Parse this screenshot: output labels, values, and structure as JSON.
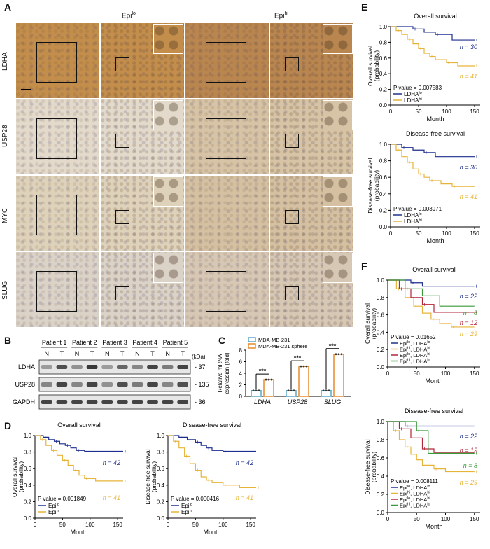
{
  "panels": {
    "A": "A",
    "B": "B",
    "C": "C",
    "D": "D",
    "E": "E",
    "F": "F"
  },
  "panelA": {
    "col_epilo": "Epi",
    "col_epilo_sup": "lo",
    "col_epihi": "Epi",
    "col_epihi_sup": "hi",
    "rows": [
      "LDHA",
      "USP28",
      "MYC",
      "SLUG"
    ],
    "row_colors": {
      "LDHA": {
        "lo": "#c38e4c",
        "hi": "#b98650"
      },
      "USP28": {
        "lo": "#e3dacb",
        "hi": "#d7c3a5"
      },
      "MYC": {
        "lo": "#dfd2ba",
        "hi": "#d5c1a2"
      },
      "SLUG": {
        "lo": "#dcd3c8",
        "hi": "#d7c8b5"
      }
    }
  },
  "panelB": {
    "patients": [
      "Patient 1",
      "Patient 2",
      "Patient 3",
      "Patient 4",
      "Patient 5"
    ],
    "lanes": [
      "N",
      "T",
      "N",
      "T",
      "N",
      "T",
      "N",
      "T",
      "N",
      "T"
    ],
    "kda_label": "(kDa)",
    "blots": [
      {
        "name": "LDHA",
        "kda": "37"
      },
      {
        "name": "USP28",
        "kda": "135"
      },
      {
        "name": "GAPDH",
        "kda": "36"
      }
    ]
  },
  "panelC": {
    "legend": [
      "MDA-MB-231",
      "MDA-MB-231 sphere"
    ],
    "legend_colors": [
      "#5aa9c7",
      "#e88a2c"
    ],
    "ylabel_line1": "Relative mRNA",
    "ylabel_line2": "expression (fold)",
    "sig": "***"
  },
  "panelD": {
    "left_title": "Overall survival",
    "right_title": "Disease-free survival",
    "ylabel_left": "Overall survival",
    "ylabel_right": "Disease-free survival",
    "ylabel_sub": "(probability)",
    "xlabel": "Month",
    "n_top": "n = 42",
    "n_bottom": "n = 41",
    "p_left": "P value = 0.001849",
    "p_right": "P value = 0.000416",
    "legend": [
      {
        "base": "Epi",
        "sup": "lo"
      },
      {
        "base": "Epi",
        "sup": "hi"
      }
    ]
  },
  "panelE": {
    "top_title": "Overall survival",
    "bottom_title": "Disease-free survival",
    "ylabel_top": "Overall survival",
    "ylabel_bottom": "Disease-free survival",
    "ylabel_sub": "(probability)",
    "xlabel": "Month",
    "n_top": "n = 30",
    "n_bottom": "n = 41",
    "p_top": "P value = 0.007583",
    "p_bottom": "P value = 0.003971",
    "legend": [
      {
        "base": "LDHA",
        "sup": "lo"
      },
      {
        "base": "LDHA",
        "sup": "hi"
      }
    ]
  },
  "panelF": {
    "top_title": "Overall survival",
    "bottom_title": "Disease-free survival",
    "ylabel_top": "Overall survival",
    "ylabel_bottom": "Disease-free survival",
    "ylabel_sub": "(probability)",
    "xlabel": "Month",
    "p_top": "P value = 0.01652",
    "p_bottom": "P value = 0.008111",
    "n_labels_top": [
      "n = 22",
      "n = 8",
      "n = 12",
      "n = 29"
    ],
    "n_labels_bottom": [
      "n = 22",
      "n = 12",
      "n = 8",
      "n = 29"
    ],
    "legend": [
      {
        "a": "Epi",
        "as": "lo",
        "b": "LDHA",
        "bs": "lo"
      },
      {
        "a": "Epi",
        "as": "hi",
        "b": "LDHA",
        "bs": "hi"
      },
      {
        "a": "Epi",
        "as": "lo",
        "b": "LDHA",
        "bs": "hi"
      },
      {
        "a": "Epi",
        "as": "hi",
        "b": "LDHA",
        "bs": "lo"
      }
    ]
  },
  "colors": {
    "blue": "#1f2f8f",
    "gold": "#e7b43a",
    "red": "#b3263a",
    "green": "#3a9a3a"
  },
  "chart_data": [
    {
      "type": "bar",
      "title": "",
      "categories": [
        "LDHA",
        "USP28",
        "SLUG"
      ],
      "series": [
        {
          "name": "MDA-MB-231",
          "values": [
            1,
            1,
            1
          ]
        },
        {
          "name": "MDA-MB-231 sphere",
          "values": [
            2.9,
            5.2,
            7.3
          ]
        }
      ],
      "ylabel": "Relative mRNA expression (fold)",
      "ylim": [
        0,
        8
      ],
      "yticks": [
        "0",
        "2",
        "4",
        "6",
        "8"
      ]
    },
    {
      "type": "line",
      "title": "Overall survival",
      "xlabel": "Month",
      "ylabel": "Overall survival (probability)",
      "xlim": [
        0,
        150
      ],
      "ylim": [
        0,
        1.0
      ],
      "xticks": [
        "0",
        "50",
        "100",
        "150"
      ],
      "yticks": [
        "0.0",
        "0.2",
        "0.4",
        "0.6",
        "0.8",
        "1.0"
      ],
      "series": [
        {
          "name": "Epi lo",
          "color": "blue",
          "x": [
            0,
            15,
            25,
            35,
            45,
            55,
            65,
            75,
            90,
            160
          ],
          "y": [
            1.0,
            0.98,
            0.95,
            0.93,
            0.9,
            0.88,
            0.85,
            0.82,
            0.81,
            0.81
          ]
        },
        {
          "name": "Epi hi",
          "color": "gold",
          "x": [
            0,
            10,
            20,
            30,
            40,
            50,
            60,
            70,
            80,
            90,
            110,
            160
          ],
          "y": [
            1.0,
            0.95,
            0.88,
            0.82,
            0.76,
            0.7,
            0.64,
            0.58,
            0.52,
            0.48,
            0.45,
            0.45
          ]
        }
      ]
    },
    {
      "type": "line",
      "title": "Disease-free survival",
      "xlabel": "Month",
      "ylabel": "Disease-free survival (probability)",
      "xlim": [
        0,
        150
      ],
      "ylim": [
        0,
        1.0
      ],
      "xticks": [
        "0",
        "50",
        "100",
        "150"
      ],
      "yticks": [
        "0.0",
        "0.2",
        "0.4",
        "0.6",
        "0.8",
        "1.0"
      ],
      "series": [
        {
          "name": "Epi lo",
          "color": "blue",
          "x": [
            0,
            20,
            35,
            50,
            60,
            70,
            80,
            100,
            160
          ],
          "y": [
            1.0,
            0.98,
            0.95,
            0.92,
            0.88,
            0.85,
            0.82,
            0.81,
            0.81
          ]
        },
        {
          "name": "Epi hi",
          "color": "gold",
          "x": [
            0,
            10,
            20,
            30,
            40,
            50,
            60,
            70,
            80,
            100,
            130,
            160
          ],
          "y": [
            1.0,
            0.93,
            0.85,
            0.75,
            0.66,
            0.58,
            0.5,
            0.46,
            0.43,
            0.4,
            0.37,
            0.37
          ]
        }
      ]
    },
    {
      "type": "line",
      "title": "Overall survival",
      "xlabel": "Month",
      "ylabel": "Overall survival (probability)",
      "xlim": [
        0,
        150
      ],
      "ylim": [
        0,
        1.0
      ],
      "xticks": [
        "0",
        "50",
        "100",
        "150"
      ],
      "yticks": [
        "0.0",
        "0.2",
        "0.4",
        "0.6",
        "0.8",
        "1.0"
      ],
      "series": [
        {
          "name": "LDHA lo",
          "color": "blue",
          "x": [
            0,
            40,
            60,
            80,
            110,
            150
          ],
          "y": [
            1.0,
            0.97,
            0.93,
            0.9,
            0.83,
            0.83
          ]
        },
        {
          "name": "LDHA hi",
          "color": "gold",
          "x": [
            0,
            10,
            20,
            30,
            40,
            50,
            60,
            70,
            80,
            100,
            120,
            150
          ],
          "y": [
            1.0,
            0.95,
            0.9,
            0.84,
            0.78,
            0.72,
            0.66,
            0.62,
            0.58,
            0.54,
            0.5,
            0.5
          ]
        }
      ]
    },
    {
      "type": "line",
      "title": "Disease-free survival",
      "xlabel": "Month",
      "ylabel": "Disease-free survival (probability)",
      "xlim": [
        0,
        150
      ],
      "ylim": [
        0,
        1.0
      ],
      "xticks": [
        "0",
        "50",
        "100",
        "150"
      ],
      "yticks": [
        "0.0",
        "0.2",
        "0.4",
        "0.6",
        "0.8",
        "1.0"
      ],
      "series": [
        {
          "name": "LDHA lo",
          "color": "blue",
          "x": [
            0,
            20,
            40,
            60,
            80,
            150
          ],
          "y": [
            1.0,
            0.96,
            0.93,
            0.9,
            0.85,
            0.85
          ]
        },
        {
          "name": "LDHA hi",
          "color": "gold",
          "x": [
            0,
            10,
            20,
            30,
            40,
            50,
            60,
            70,
            90,
            110,
            150
          ],
          "y": [
            1.0,
            0.93,
            0.85,
            0.78,
            0.7,
            0.64,
            0.6,
            0.56,
            0.52,
            0.49,
            0.49
          ]
        }
      ]
    },
    {
      "type": "line",
      "title": "Overall survival",
      "xlabel": "Month",
      "ylabel": "Overall survival (probability)",
      "xlim": [
        0,
        150
      ],
      "ylim": [
        0,
        1.0
      ],
      "xticks": [
        "0",
        "50",
        "100",
        "150"
      ],
      "yticks": [
        "0.0",
        "0.2",
        "0.4",
        "0.6",
        "0.8",
        "1.0"
      ],
      "series": [
        {
          "name": "Epi lo, LDHA lo",
          "color": "blue",
          "x": [
            0,
            40,
            60,
            150
          ],
          "y": [
            1.0,
            0.97,
            0.93,
            0.93
          ]
        },
        {
          "name": "Epi hi, LDHA hi",
          "color": "gold",
          "x": [
            0,
            15,
            30,
            45,
            60,
            75,
            90,
            110,
            150
          ],
          "y": [
            1.0,
            0.9,
            0.8,
            0.7,
            0.62,
            0.55,
            0.5,
            0.46,
            0.46
          ]
        },
        {
          "name": "Epi lo, LDHA hi",
          "color": "red",
          "x": [
            0,
            20,
            40,
            60,
            80,
            150
          ],
          "y": [
            1.0,
            0.9,
            0.8,
            0.72,
            0.63,
            0.63
          ]
        },
        {
          "name": "Epi hi, LDHA lo",
          "color": "green",
          "x": [
            0,
            30,
            60,
            90,
            150
          ],
          "y": [
            1.0,
            0.9,
            0.82,
            0.7,
            0.7
          ]
        }
      ]
    },
    {
      "type": "line",
      "title": "Disease-free survival",
      "xlabel": "Month",
      "ylabel": "Disease-free survival (probability)",
      "xlim": [
        0,
        150
      ],
      "ylim": [
        0,
        1.0
      ],
      "xticks": [
        "0",
        "50",
        "100",
        "150"
      ],
      "yticks": [
        "0.0",
        "0.2",
        "0.4",
        "0.6",
        "0.8",
        "1.0"
      ],
      "series": [
        {
          "name": "Epi lo, LDHA lo",
          "color": "blue",
          "x": [
            0,
            30,
            150
          ],
          "y": [
            1.0,
            0.95,
            0.95
          ]
        },
        {
          "name": "Epi hi, LDHA hi",
          "color": "gold",
          "x": [
            0,
            10,
            20,
            30,
            40,
            50,
            60,
            80,
            100,
            150
          ],
          "y": [
            1.0,
            0.9,
            0.8,
            0.72,
            0.64,
            0.58,
            0.52,
            0.48,
            0.45,
            0.45
          ]
        },
        {
          "name": "Epi lo, LDHA hi",
          "color": "red",
          "x": [
            0,
            20,
            40,
            60,
            80,
            150
          ],
          "y": [
            1.0,
            0.92,
            0.82,
            0.7,
            0.66,
            0.66
          ]
        },
        {
          "name": "Epi hi, LDHA lo",
          "color": "green",
          "x": [
            0,
            50,
            70,
            150
          ],
          "y": [
            1.0,
            0.9,
            0.65,
            0.65
          ]
        }
      ]
    }
  ]
}
